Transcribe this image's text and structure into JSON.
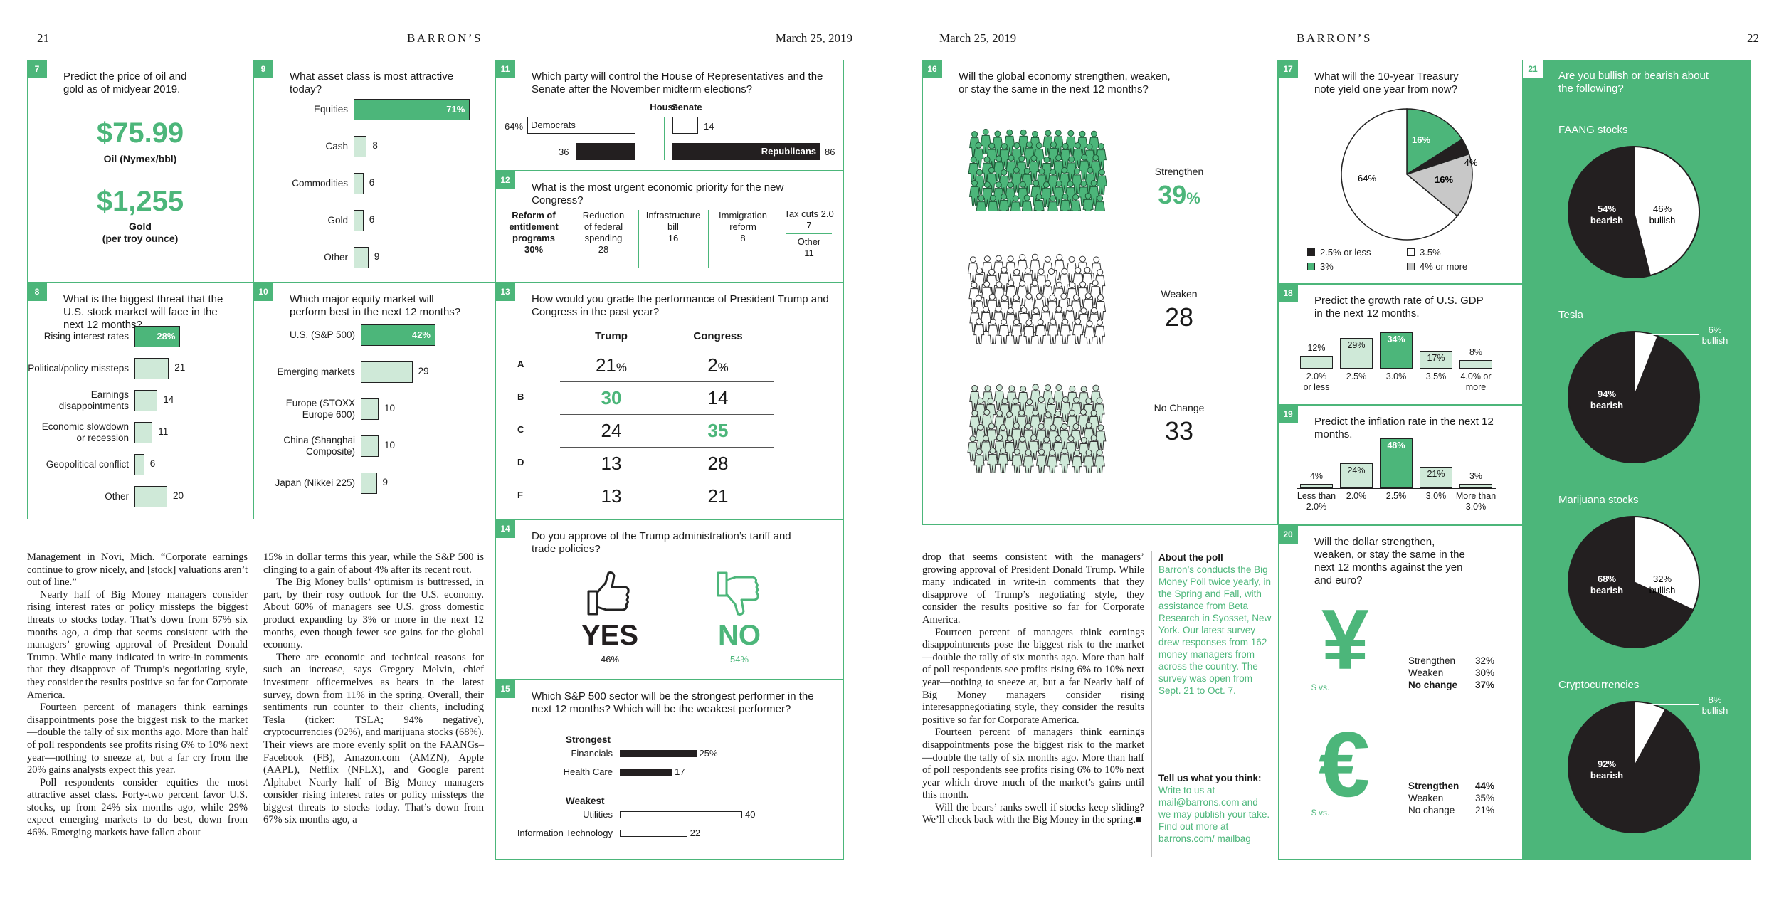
{
  "left": {
    "page_num": "21",
    "brand": "BARRON’S",
    "date": "March 25, 2019"
  },
  "right": {
    "page_num": "22",
    "brand": "BARRON’S",
    "date": "March 25, 2019"
  },
  "q7": {
    "num": "7",
    "q": "Predict the price of oil and gold as of midyear 2019.",
    "oil_val": "$75.99",
    "oil_lab": "Oil (Nymex/bbl)",
    "gold_val": "$1,255",
    "gold_lab1": "Gold",
    "gold_lab2": "(per troy ounce)"
  },
  "q8": {
    "num": "8",
    "q": "What is the biggest threat that the U.S. stock market will face in the next 12 months?",
    "bars": [
      {
        "l1": "Rising interest rates",
        "l2": "",
        "v": "28%",
        "n": 28,
        "hi": true
      },
      {
        "l1": "Political/policy missteps",
        "l2": "",
        "v": "21",
        "n": 21
      },
      {
        "l1": "Earnings",
        "l2": "disappointments",
        "v": "14",
        "n": 14
      },
      {
        "l1": "Economic slowdown",
        "l2": "or recession",
        "v": "11",
        "n": 11
      },
      {
        "l1": "Geopolitical conflict",
        "l2": "",
        "v": "6",
        "n": 6
      },
      {
        "l1": "Other",
        "l2": "",
        "v": "20",
        "n": 20
      }
    ]
  },
  "q9": {
    "num": "9",
    "q": "What asset class is most attractive today?",
    "bars": [
      {
        "l1": "Equities",
        "v": "71%",
        "n": 71,
        "hi": true
      },
      {
        "l1": "Cash",
        "v": "8",
        "n": 8
      },
      {
        "l1": "Commodities",
        "v": "6",
        "n": 6
      },
      {
        "l1": "Gold",
        "v": "6",
        "n": 6
      },
      {
        "l1": "Other",
        "v": "9",
        "n": 9
      }
    ]
  },
  "q10": {
    "num": "10",
    "q": "Which major equity market will perform best in the next 12 months?",
    "bars": [
      {
        "l1": "U.S. (S&P 500)",
        "l2": "",
        "v": "42%",
        "n": 42,
        "hi": true
      },
      {
        "l1": "Emerging markets",
        "l2": "",
        "v": "29",
        "n": 29
      },
      {
        "l1": "Europe (STOXX",
        "l2": "Europe 600)",
        "v": "10",
        "n": 10
      },
      {
        "l1": "China (Shanghai",
        "l2": "Composite)",
        "v": "10",
        "n": 10
      },
      {
        "l1": "Japan (Nikkei 225)",
        "l2": "",
        "v": "9",
        "n": 9
      }
    ]
  },
  "q11": {
    "num": "11",
    "q": "Which party will control the House of Representatives and the Senate after the November midterm elections?",
    "house": "House",
    "senate": "Senate",
    "dem_pct": "64%",
    "dem": "Democrats",
    "sen_dem": "14",
    "rep_house": "36",
    "rep": "Republicans",
    "sen_rep": "86"
  },
  "q12": {
    "num": "12",
    "q": "What is the most urgent economic priority for the new Congress?",
    "items": [
      {
        "t1": "Reform of",
        "t2": "entitlement",
        "t3": "programs",
        "v": "30%"
      },
      {
        "t1": "Reduction",
        "t2": "of federal",
        "t3": "spending",
        "v": "28"
      },
      {
        "t1": "Infrastructure",
        "t2": "bill",
        "t3": "",
        "v": "16"
      },
      {
        "t1": "Immigration",
        "t2": "reform",
        "t3": "",
        "v": "8"
      }
    ],
    "last_a": "Tax cuts 2.0",
    "last_a_v": "7",
    "last_b": "Other",
    "last_b_v": "11"
  },
  "q13": {
    "num": "13",
    "q": "How would you grade the performance of President Trump and Congress in the past year?",
    "h1": "Trump",
    "h2": "Congress",
    "rows": [
      {
        "g": "A",
        "t": "21",
        "tp": "%",
        "c": "2",
        "cp": "%"
      },
      {
        "g": "B",
        "t": "30",
        "tp": "",
        "c": "14",
        "cp": ""
      },
      {
        "g": "C",
        "t": "24",
        "tp": "",
        "c": "35",
        "cp": ""
      },
      {
        "g": "D",
        "t": "13",
        "tp": "",
        "c": "28",
        "cp": ""
      },
      {
        "g": "F",
        "t": "13",
        "tp": "",
        "c": "21",
        "cp": ""
      }
    ]
  },
  "q14": {
    "num": "14",
    "q": "Do you approve of the Trump administration’s tariff and trade policies?",
    "yes": "YES",
    "yes_v": "46%",
    "no": "NO",
    "no_v": "54%"
  },
  "q15": {
    "num": "15",
    "q": "Which S&P 500 sector will be the strongest performer in the next 12 months? Which will be the weakest performer?",
    "strong": "Strongest",
    "weak": "Weakest",
    "s": [
      {
        "l": "Financials",
        "v": "25%",
        "n": 25
      },
      {
        "l": "Health Care",
        "v": "17",
        "n": 17
      }
    ],
    "w": [
      {
        "l": "Utilities",
        "v": "40",
        "n": 40
      },
      {
        "l": "Information Technology",
        "v": "22",
        "n": 22
      }
    ]
  },
  "q16": {
    "num": "16",
    "q": "Will the global economy strengthen, weaken, or stay the same in the next 12 months?",
    "s_l": "Strengthen",
    "s_v": "39",
    "s_p": "%",
    "w_l": "Weaken",
    "w_v": "28",
    "n_l": "No Change",
    "n_v": "33"
  },
  "q17": {
    "num": "17",
    "q": "What will the 10-year Treasury note yield one year from now?",
    "p64": "64%",
    "p16a": "16%",
    "p16b": "16%",
    "p4": "4%",
    "legend": [
      {
        "l": "2.5% or less",
        "c": "#231f20"
      },
      {
        "l": "3.5%",
        "c": "#ffffff"
      },
      {
        "l": "3%",
        "c": "#4cb67a"
      },
      {
        "l": "4% or more",
        "c": "#c8c8c8"
      }
    ]
  },
  "q18": {
    "num": "18",
    "q": "Predict the growth rate of U.S. GDP in the next 12 months.",
    "bars": [
      {
        "v": "12%",
        "n": 12,
        "l1": "2.0%",
        "l2": "or less"
      },
      {
        "v": "29%",
        "n": 29,
        "l1": "2.5%",
        "l2": ""
      },
      {
        "v": "34%",
        "n": 34,
        "l1": "3.0%",
        "l2": "",
        "hi": true
      },
      {
        "v": "17%",
        "n": 17,
        "l1": "3.5%",
        "l2": ""
      },
      {
        "v": "8%",
        "n": 8,
        "l1": "4.0% or",
        "l2": "more"
      }
    ]
  },
  "q19": {
    "num": "19",
    "q": "Predict the inflation rate in the next 12 months.",
    "bars": [
      {
        "v": "4%",
        "n": 4,
        "l1": "Less than",
        "l2": "2.0%"
      },
      {
        "v": "24%",
        "n": 24,
        "l1": "2.0%",
        "l2": ""
      },
      {
        "v": "48%",
        "n": 48,
        "l1": "2.5%",
        "l2": "",
        "hi": true
      },
      {
        "v": "21%",
        "n": 21,
        "l1": "3.0%",
        "l2": ""
      },
      {
        "v": "3%",
        "n": 3,
        "l1": "More than",
        "l2": "3.0%"
      }
    ]
  },
  "q20": {
    "num": "20",
    "q": "Will the dollar strengthen, weaken, or stay the same in the next 12 months against the yen and euro?",
    "yen_sym": "¥",
    "euro_sym": "€",
    "vs": "$ vs.",
    "yen": [
      {
        "l": "Strengthen",
        "v": "32%"
      },
      {
        "l": "Weaken",
        "v": "30%"
      },
      {
        "l": "No change",
        "v": "37%",
        "b": true
      }
    ],
    "euro": [
      {
        "l": "Strengthen",
        "v": "44%",
        "b": true
      },
      {
        "l": "Weaken",
        "v": "35%"
      },
      {
        "l": "No change",
        "v": "21%"
      }
    ]
  },
  "q21": {
    "num": "21",
    "q": "Are you bullish or bearish about the following?",
    "pies": [
      {
        "t": "FAANG stocks",
        "bear": "54%",
        "bull": "46%",
        "n": 54
      },
      {
        "t": "Tesla",
        "bear": "94%",
        "bull": "6%",
        "n": 94
      },
      {
        "t": "Marijuana stocks",
        "bear": "68%",
        "bull": "32%",
        "n": 68
      },
      {
        "t": "Cryptocurrencies",
        "bear": "92%",
        "bull": "8%",
        "n": 92
      }
    ],
    "bearish": "bearish",
    "bullish": "bullish"
  },
  "text": {
    "c1": [
      "Management in Novi, Mich. “Corporate earnings continue to grow nicely, and [stock] valuations aren’t out of line.”",
      "Nearly half of Big Money managers consider rising interest rates or policy missteps the biggest threats to stocks today. That’s down from 67% six months ago, a drop that seems consistent with the managers’ growing approval of President Donald Trump. While many indicated in write-in comments that they disapprove of Trump’s negotiating style, they consider the results positive so far for Corporate America.",
      "Fourteen percent of managers think earnings disappointments pose the biggest risk to the market—double the tally of six months ago. More than half of poll respondents see profits rising 6% to 10% next year—nothing to sneeze at, but a far cry from the 20% gains analysts expect this year.",
      "Poll respondents consider equities the most attractive asset class. Forty-two percent favor U.S. stocks, up from 24% six months ago, while 29% expect emerging markets to do best, down from 46%. Emerging markets have fallen about"
    ],
    "c2": [
      "15% in dollar terms this year, while the S&P 500 is clinging to a gain of about 4% after its recent rout.",
      "The Big Money bulls’ optimism is buttressed, in part, by their rosy outlook for the U.S. economy. About 60% of managers see U.S. gross domestic product expanding by 3% or more in the next 12 months, even though fewer see gains for the global economy.",
      "There are economic and technical reasons for such an increase, says Gregory Melvin, chief investment officermelves as bears in the latest survey, down from 11% in the spring. Overall, their sentiments run counter to their clients, including Tesla (ticker: TSLA; 94% negative), cryptocurrencies (92%), and marijuana stocks (68%). Their views are more evenly split on the FAANGs– Facebook (FB), Amazon.com (AMZN), Apple (AAPL), Netflix (NFLX), and Google parent Alphabet Nearly half of Big Money managers consider rising interest rates or policy missteps the biggest threats to stocks today. That’s down from 67% six months ago, a"
    ],
    "c3": [
      "drop that seems consistent with the managers’ growing approval of President Donald Trump. While many indicated in write-in comments that they disapprove of Trump’s negotiating style, they consider the results positive so far for Corporate America.",
      "Fourteen percent of managers think earnings disappointments pose the biggest risk to the market—double the tally of six months ago. More than half of poll respondents see profits rising 6% to 10% next year—nothing to sneeze at, but a far Nearly half of Big Money managers consider rising interesappnegotiating style, they consider the results positive so far for Corporate America.",
      "Fourteen percent of managers think earnings disappointments pose the biggest risk to the market—double the tally of six months ago. More than half of poll respondents see profits rising 6% to 10% next year which drove much of the market’s gains until this month.",
      "Will the bears’ ranks swell if stocks keep sliding? We’ll check back with the Big Money in the spring.■"
    ],
    "about_h": "About the poll",
    "about": "Barron’s conducts the Big Money Poll twice yearly, in the Spring and Fall, with assistance from Beta Research in Syosset, New York. Our latest survey drew responses from 162 money managers from across the country. The survey was open from Sept. 21 to Oct. 7.",
    "tell_h": "Tell us what you think:",
    "tell": "Write to us at mail@barrons.com and we may publish your take. Find out more at barrons.com/ mailbag"
  },
  "colors": {
    "green": "#4cb67a",
    "light_green": "#cfe9d8",
    "dark": "#231f20"
  }
}
